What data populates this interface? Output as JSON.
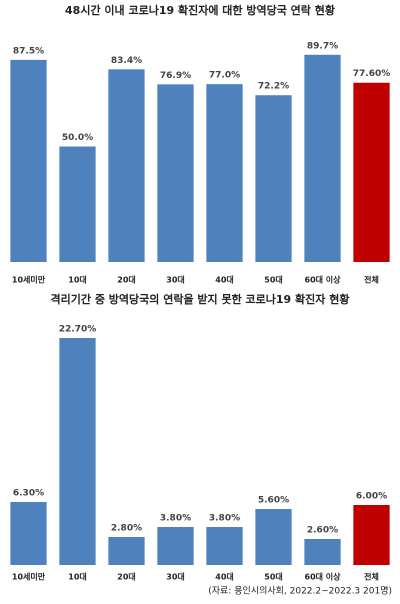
{
  "chart_data": [
    {
      "type": "bar",
      "title": "48시간 이내 코로나19 확진자에 대한 방역당국 연락 현황",
      "categories": [
        "10세미만",
        "10대",
        "20대",
        "30대",
        "40대",
        "50대",
        "60대 이상",
        "전체"
      ],
      "values": [
        87.5,
        50.0,
        83.4,
        76.9,
        77.0,
        72.2,
        89.7,
        77.6
      ],
      "value_labels": [
        "87.5%",
        "50.0%",
        "83.4%",
        "76.9%",
        "77.0%",
        "72.2%",
        "89.7%",
        "77.60%"
      ],
      "colors": [
        "#4f81bd",
        "#4f81bd",
        "#4f81bd",
        "#4f81bd",
        "#4f81bd",
        "#4f81bd",
        "#4f81bd",
        "#c00000"
      ],
      "ylim": [
        0,
        100
      ]
    },
    {
      "type": "bar",
      "title": "격리기간 중 방역당국의 연락을 받지 못한 코로나19 확진자 현황",
      "categories": [
        "10세미만",
        "10대",
        "20대",
        "30대",
        "40대",
        "50대",
        "60대 이상",
        "전체"
      ],
      "values": [
        6.3,
        22.7,
        2.8,
        3.8,
        3.8,
        5.6,
        2.6,
        6.0
      ],
      "value_labels": [
        "6.30%",
        "22.70%",
        "2.80%",
        "3.80%",
        "3.80%",
        "5.60%",
        "2.60%",
        "6.00%"
      ],
      "colors": [
        "#4f81bd",
        "#4f81bd",
        "#4f81bd",
        "#4f81bd",
        "#4f81bd",
        "#4f81bd",
        "#4f81bd",
        "#c00000"
      ],
      "ylim": [
        0,
        25
      ]
    }
  ],
  "source": "(자료: 용인시의사회, 2022.2~2022.3 201명)"
}
